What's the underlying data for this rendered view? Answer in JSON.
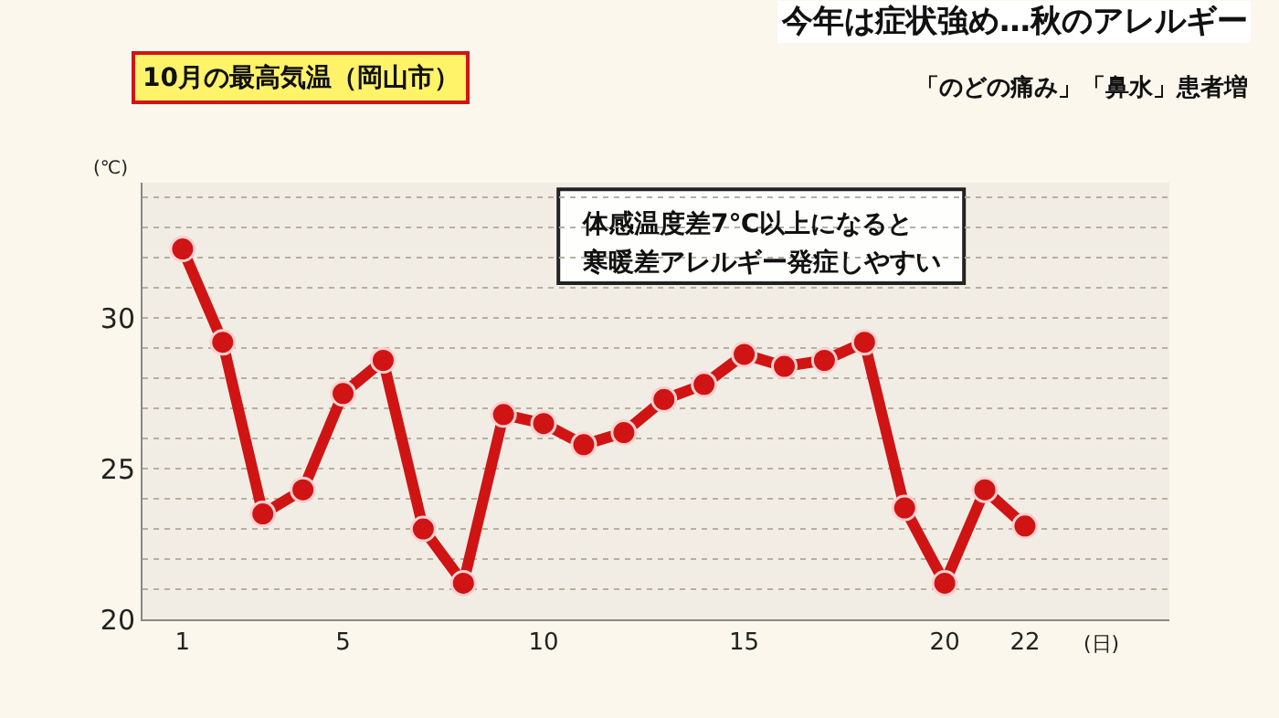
{
  "chart_data": {
    "type": "line",
    "title": "今年は症状強め…秋のアレルギー",
    "subtitle": "「のどの痛み」「鼻水」患者増",
    "xlabel": "(日)",
    "ylabel": "(℃)",
    "annotations": [
      "10月の最高気温（岡山市）",
      "体感温度差7℃以上になると",
      "寒暖差アレルギー発症しやすい"
    ],
    "x": [
      1,
      2,
      3,
      4,
      5,
      6,
      7,
      8,
      9,
      10,
      11,
      12,
      13,
      14,
      15,
      16,
      17,
      18,
      19,
      20,
      21,
      22
    ],
    "series": [
      {
        "color": "#d01414",
        "values": [
          32.3,
          29.2,
          23.5,
          24.3,
          27.5,
          28.6,
          23.0,
          21.2,
          26.8,
          26.5,
          25.8,
          26.2,
          27.3,
          27.8,
          28.8,
          28.4,
          28.6,
          29.2,
          23.7,
          21.2,
          24.3,
          23.1
        ]
      }
    ],
    "xlim": [
      0,
      25.6
    ],
    "xticks": [
      1,
      5,
      10,
      15,
      20,
      22
    ],
    "ylim": [
      20,
      34.5
    ],
    "yticks": [
      20,
      {
        "value": 21,
        "label": null
      },
      {
        "value": 22,
        "label": null
      },
      {
        "value": 23,
        "label": null
      },
      {
        "value": 24,
        "label": null
      },
      25,
      {
        "value": 26,
        "label": null
      },
      {
        "value": 27,
        "label": null
      },
      {
        "value": 28,
        "label": null
      },
      {
        "value": 29,
        "label": null
      },
      30,
      {
        "value": 31,
        "label": null
      },
      {
        "value": 32,
        "label": null
      },
      {
        "value": 33,
        "label": null
      },
      {
        "value": 34,
        "label": null
      }
    ],
    "grid": "y",
    "marker": "circle",
    "line_style": "solid"
  }
}
